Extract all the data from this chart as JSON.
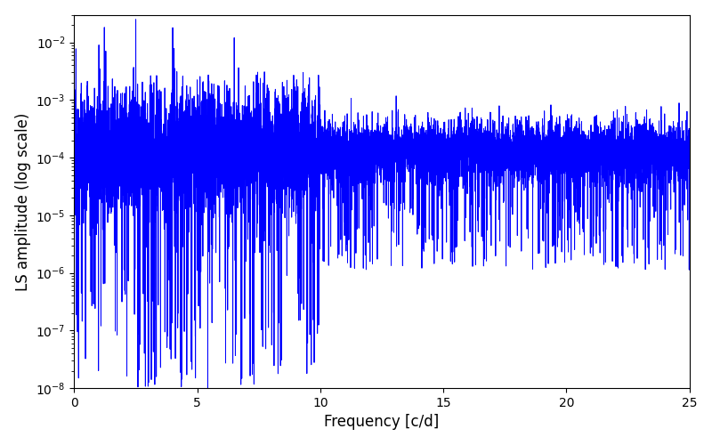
{
  "title": "",
  "xlabel": "Frequency [c/d]",
  "ylabel": "LS amplitude (log scale)",
  "xlim": [
    0,
    25
  ],
  "ylim": [
    1e-08,
    0.03
  ],
  "line_color": "#0000ff",
  "line_width": 0.7,
  "yscale": "log",
  "figsize": [
    8.0,
    5.0
  ],
  "dpi": 100,
  "seed": 12345,
  "n_points": 8000,
  "freq_max": 25.0,
  "background_color": "#ffffff",
  "peak_freqs": [
    1.0,
    2.5,
    4.0,
    6.5,
    10.0
  ],
  "peak_amps": [
    0.009,
    0.025,
    0.018,
    0.012,
    0.0015
  ],
  "base_log_mean": -3.9,
  "base_log_std": 0.55
}
